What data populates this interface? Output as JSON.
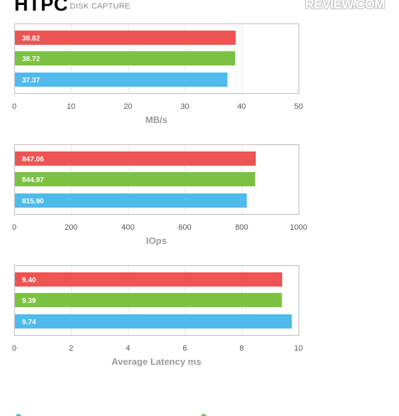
{
  "header": {
    "title": "HTPC",
    "subtitle": "DISK CAPTURE",
    "logo": "REVIEW.COM"
  },
  "colors": {
    "red": "#ee5454",
    "green": "#7cc242",
    "blue": "#4fbbec"
  },
  "chart_data": [
    {
      "type": "bar",
      "orientation": "horizontal",
      "xlabel": "MB/s",
      "xlim": [
        0,
        50
      ],
      "ticks": [
        "0",
        "10",
        "20",
        "30",
        "40",
        "50"
      ],
      "values": [
        38.82,
        38.72,
        37.37
      ],
      "labels": [
        "38.82",
        "38.72",
        "37.37"
      ],
      "colors": [
        "#ee5454",
        "#7cc242",
        "#4fbbec"
      ]
    },
    {
      "type": "bar",
      "orientation": "horizontal",
      "xlabel": "IOps",
      "xlim": [
        0,
        1000
      ],
      "ticks": [
        "0",
        "200",
        "400",
        "600",
        "800",
        "1000"
      ],
      "values": [
        847.06,
        844.97,
        815.9
      ],
      "labels": [
        "847.06",
        "844.97",
        "815.90"
      ],
      "colors": [
        "#ee5454",
        "#7cc242",
        "#4fbbec"
      ]
    },
    {
      "type": "bar",
      "orientation": "horizontal",
      "xlabel": "Average Latency ms",
      "xlim": [
        0,
        10
      ],
      "ticks": [
        "0",
        "2",
        "4",
        "6",
        "8",
        "10"
      ],
      "values": [
        9.4,
        9.39,
        9.74
      ],
      "labels": [
        "9.40",
        "9.39",
        "9.74"
      ],
      "colors": [
        "#ee5454",
        "#7cc242",
        "#4fbbec"
      ]
    }
  ]
}
